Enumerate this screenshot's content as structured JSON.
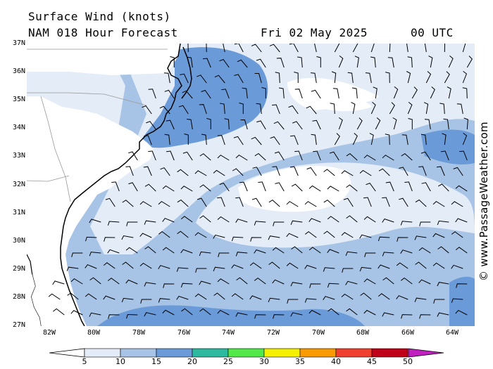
{
  "header": {
    "title": "Surface Wind (knots)",
    "model": "NAM 018 Hour Forecast",
    "date": "Fri 02 May 2025",
    "time": "00 UTC"
  },
  "copyright": "© www.PassageWeather.com",
  "map": {
    "lon_range": [
      -83,
      -63
    ],
    "lat_range": [
      27,
      37
    ],
    "lat_labels": [
      "37N",
      "36N",
      "35N",
      "34N",
      "33N",
      "32N",
      "31N",
      "30N",
      "29N",
      "28N",
      "27N"
    ],
    "lon_labels": [
      "82W",
      "80W",
      "78W",
      "76W",
      "74W",
      "72W",
      "70W",
      "68W",
      "66W",
      "64W"
    ],
    "background_color": "#a7c4e6",
    "land_color": "#ffffff"
  },
  "colorbar": {
    "ticks": [
      "5",
      "10",
      "15",
      "20",
      "25",
      "30",
      "35",
      "40",
      "45",
      "50"
    ],
    "colors": [
      "#e4ecf8",
      "#a7c4e6",
      "#6a9bd8",
      "#2db8a0",
      "#52e84a",
      "#f4f000",
      "#f99a00",
      "#f04030",
      "#c00018",
      "#c020c0"
    ]
  }
}
